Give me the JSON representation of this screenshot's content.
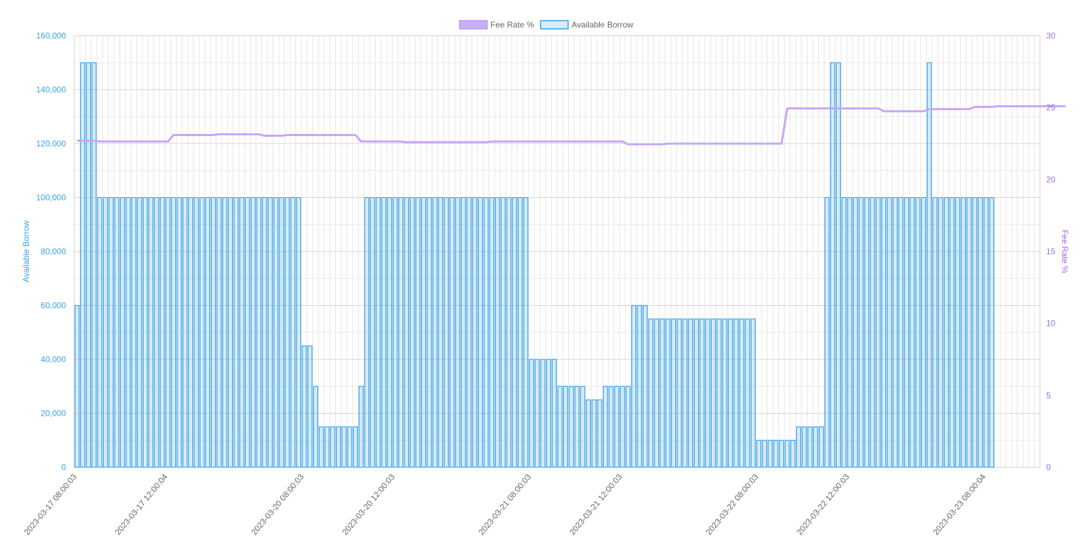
{
  "chart_data": {
    "type": "bar+line",
    "legend": {
      "position": "top-center",
      "items": [
        {
          "label": "Fee Rate %",
          "color": "#b794f4"
        },
        {
          "label": "Available Borrow",
          "color": "#36a2eb"
        }
      ]
    },
    "axes": {
      "left": {
        "title": "Available Borrow",
        "min": 0,
        "max": 160000,
        "step": 20000,
        "color": "#36a2eb",
        "ticks": [
          "0",
          "20,000",
          "40,000",
          "60,000",
          "80,000",
          "100,000",
          "120,000",
          "140,000",
          "160,000"
        ]
      },
      "right": {
        "title": "Fee Rate %",
        "min": 0,
        "max": 30,
        "step": 5,
        "color": "#9f6bec",
        "ticks": [
          "0",
          "5",
          "10",
          "15",
          "20",
          "25",
          "30"
        ]
      }
    },
    "x_labels": [
      {
        "label": "2023-03-17 08:00:03",
        "index": 0
      },
      {
        "label": "2023-03-17 12:00:04",
        "index": 16
      },
      {
        "label": "2023-03-20 08:00:03",
        "index": 40
      },
      {
        "label": "2023-03-20 12:00:03",
        "index": 56
      },
      {
        "label": "2023-03-21 08:00:03",
        "index": 80
      },
      {
        "label": "2023-03-21 12:00:03",
        "index": 96
      },
      {
        "label": "2023-03-22 08:00:03",
        "index": 120
      },
      {
        "label": "2023-03-22 12:00:03",
        "index": 136
      },
      {
        "label": "2023-03-23 08:00:04",
        "index": 160
      }
    ],
    "grid": true,
    "series": [
      {
        "name": "Available Borrow",
        "type": "bar",
        "axis": "left",
        "values": [
          60000,
          150000,
          150000,
          150000,
          100000,
          100000,
          100000,
          100000,
          100000,
          100000,
          100000,
          100000,
          100000,
          100000,
          100000,
          100000,
          100000,
          100000,
          100000,
          100000,
          100000,
          100000,
          100000,
          100000,
          100000,
          100000,
          100000,
          100000,
          100000,
          100000,
          100000,
          100000,
          100000,
          100000,
          100000,
          100000,
          100000,
          100000,
          100000,
          100000,
          45000,
          45000,
          30000,
          15000,
          15000,
          15000,
          15000,
          15000,
          15000,
          15000,
          30000,
          100000,
          100000,
          100000,
          100000,
          100000,
          100000,
          100000,
          100000,
          100000,
          100000,
          100000,
          100000,
          100000,
          100000,
          100000,
          100000,
          100000,
          100000,
          100000,
          100000,
          100000,
          100000,
          100000,
          100000,
          100000,
          100000,
          100000,
          100000,
          100000,
          40000,
          40000,
          40000,
          40000,
          40000,
          30000,
          30000,
          30000,
          30000,
          30000,
          25000,
          25000,
          25000,
          30000,
          30000,
          30000,
          30000,
          30000,
          60000,
          60000,
          60000,
          55000,
          55000,
          55000,
          55000,
          55000,
          55000,
          55000,
          55000,
          55000,
          55000,
          55000,
          55000,
          55000,
          55000,
          55000,
          55000,
          55000,
          55000,
          55000,
          10000,
          10000,
          10000,
          10000,
          10000,
          10000,
          10000,
          15000,
          15000,
          15000,
          15000,
          15000,
          100000,
          150000,
          150000,
          100000,
          100000,
          100000,
          100000,
          100000,
          100000,
          100000,
          100000,
          100000,
          100000,
          100000,
          100000,
          100000,
          100000,
          100000,
          150000,
          100000,
          100000,
          100000,
          100000,
          100000,
          100000,
          100000,
          100000,
          100000,
          100000,
          100000,
          0,
          0,
          0,
          0,
          0,
          0,
          0,
          0
        ]
      },
      {
        "name": "Fee Rate %",
        "type": "line",
        "axis": "right",
        "values": [
          22.7,
          22.7,
          22.7,
          22.7,
          22.65,
          22.65,
          22.65,
          22.65,
          22.65,
          22.65,
          22.65,
          22.65,
          22.65,
          22.65,
          22.65,
          22.65,
          22.65,
          23.1,
          23.1,
          23.1,
          23.1,
          23.1,
          23.1,
          23.1,
          23.1,
          23.15,
          23.15,
          23.15,
          23.15,
          23.15,
          23.15,
          23.15,
          23.15,
          23.05,
          23.05,
          23.05,
          23.05,
          23.1,
          23.1,
          23.1,
          23.1,
          23.1,
          23.1,
          23.1,
          23.1,
          23.1,
          23.1,
          23.1,
          23.1,
          23.1,
          22.65,
          22.65,
          22.65,
          22.65,
          22.65,
          22.65,
          22.65,
          22.65,
          22.6,
          22.6,
          22.6,
          22.6,
          22.6,
          22.6,
          22.6,
          22.6,
          22.6,
          22.6,
          22.6,
          22.6,
          22.6,
          22.6,
          22.6,
          22.65,
          22.65,
          22.65,
          22.65,
          22.65,
          22.65,
          22.65,
          22.65,
          22.65,
          22.65,
          22.65,
          22.65,
          22.65,
          22.65,
          22.65,
          22.65,
          22.65,
          22.65,
          22.65,
          22.65,
          22.65,
          22.65,
          22.65,
          22.65,
          22.45,
          22.45,
          22.45,
          22.45,
          22.45,
          22.45,
          22.45,
          22.5,
          22.5,
          22.5,
          22.5,
          22.5,
          22.5,
          22.5,
          22.5,
          22.5,
          22.5,
          22.5,
          22.5,
          22.5,
          22.5,
          22.5,
          22.5,
          22.5,
          22.5,
          22.5,
          22.5,
          22.5,
          24.95,
          24.95,
          24.95,
          24.95,
          24.95,
          24.95,
          24.95,
          24.95,
          24.95,
          24.95,
          24.95,
          24.95,
          24.95,
          24.95,
          24.95,
          24.95,
          24.95,
          24.75,
          24.75,
          24.75,
          24.75,
          24.75,
          24.75,
          24.75,
          24.75,
          24.9,
          24.9,
          24.9,
          24.9,
          24.9,
          24.9,
          24.9,
          24.9,
          25.05,
          25.05,
          25.05,
          25.05,
          25.1,
          25.1,
          25.1,
          25.1,
          25.1,
          25.1,
          25.1,
          25.1,
          25.1,
          25.1,
          25.1,
          25.1,
          25.1
        ]
      }
    ]
  }
}
